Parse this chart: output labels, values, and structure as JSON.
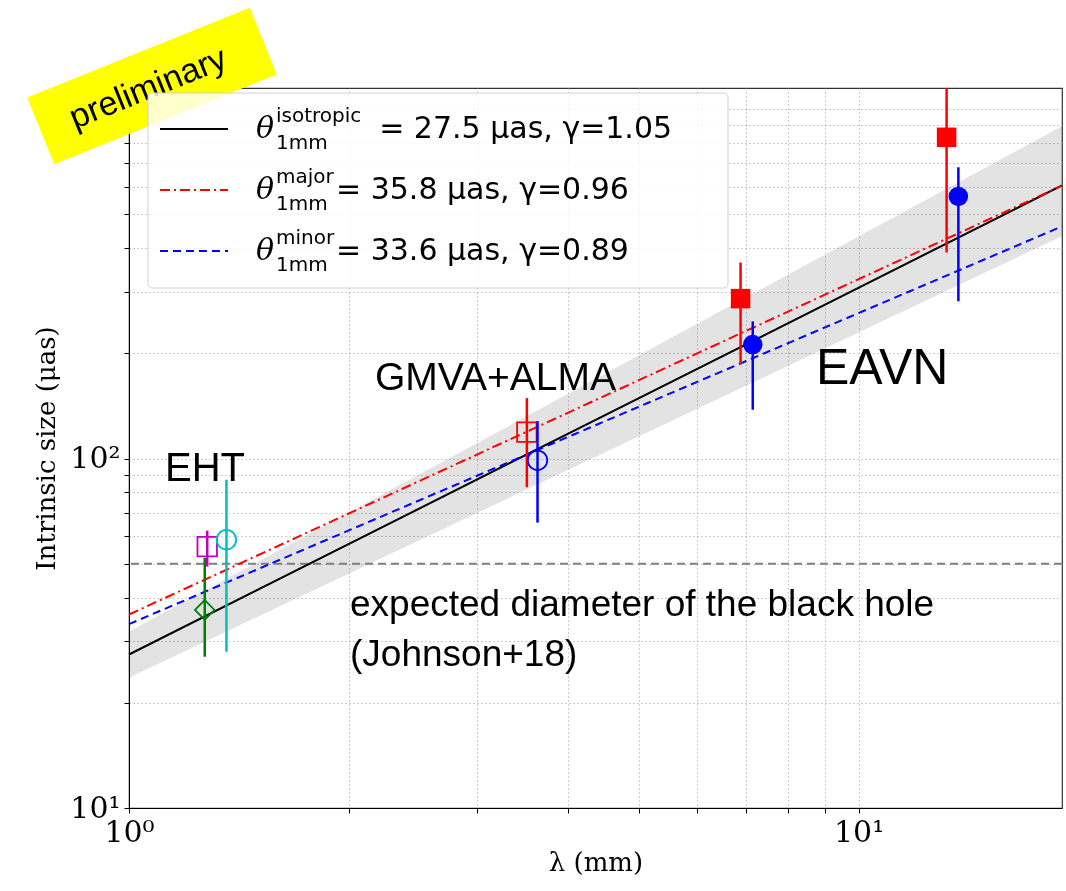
{
  "chart_data": {
    "type": "line",
    "xlabel": "λ (mm)",
    "ylabel": "Intrinsic size (μas)",
    "log": "xy",
    "grid": true,
    "legend": "top left",
    "xlim": [
      1,
      19
    ],
    "ylim": [
      10,
      1150
    ],
    "xticks": [
      {
        "value": 1,
        "label": "10⁰"
      },
      {
        "value": 2,
        "label": null
      },
      {
        "value": 3,
        "label": null
      },
      {
        "value": 4,
        "label": null
      },
      {
        "value": 5,
        "label": null
      },
      {
        "value": 6,
        "label": null
      },
      {
        "value": 7,
        "label": null
      },
      {
        "value": 8,
        "label": null
      },
      {
        "value": 9,
        "label": null
      },
      {
        "value": 10,
        "label": "10¹"
      }
    ],
    "yticks": [
      {
        "value": 10,
        "label": "10¹"
      },
      {
        "value": 20,
        "label": null
      },
      {
        "value": 30,
        "label": null
      },
      {
        "value": 40,
        "label": null
      },
      {
        "value": 50,
        "label": null
      },
      {
        "value": 60,
        "label": null
      },
      {
        "value": 70,
        "label": null
      },
      {
        "value": 80,
        "label": null
      },
      {
        "value": 90,
        "label": null
      },
      {
        "value": 100,
        "label": "10²"
      },
      {
        "value": 200,
        "label": null
      },
      {
        "value": 300,
        "label": null
      },
      {
        "value": 400,
        "label": null
      },
      {
        "value": 500,
        "label": null
      },
      {
        "value": 600,
        "label": null
      },
      {
        "value": 700,
        "label": null
      },
      {
        "value": 800,
        "label": null
      },
      {
        "value": 900,
        "label": null
      },
      {
        "value": 1000,
        "label": null
      }
    ],
    "series": [
      {
        "name": "θ$^{isotropic}$$_{1mm}$ = 27.5 μas, γ=1.05",
        "color": "#000000",
        "line_style": "solid",
        "x": [
          1,
          19
        ],
        "values": [
          27.5,
          605
        ],
        "lower": [
          23.6,
          433
        ],
        "upper": [
          32,
          894
        ]
      },
      {
        "name": "θ$^{major}$$_{1mm}$ = 35.8 μas, γ=0.96",
        "color": "#ff0000",
        "line_style": "dashdot",
        "x": [
          1,
          19
        ],
        "values": [
          35.8,
          604
        ]
      },
      {
        "name": "θ$^{minor}$$_{1mm}$ = 33.6 μas, γ=0.89",
        "color": "#0000ff",
        "line_style": "dashed",
        "x": [
          1,
          19
        ],
        "values": [
          33.6,
          462
        ]
      },
      {
        "type": "scatter",
        "color": "#008000",
        "marker": "diamond",
        "x": [
          1.27
        ],
        "values": [
          36.9
        ],
        "errors": [
          [
            27.1,
            52
          ]
        ]
      },
      {
        "type": "scatter",
        "color": "#bf00bf",
        "marker": "square",
        "x": [
          1.28
        ],
        "values": [
          56
        ],
        "errors": [
          [
            49.1,
            62.2
          ]
        ]
      },
      {
        "type": "scatter",
        "color": "#00bfbf",
        "marker": "circle",
        "x": [
          1.36
        ],
        "values": [
          58.6
        ],
        "errors": [
          [
            28.0,
            87
          ]
        ]
      },
      {
        "type": "scatter",
        "color": "#ff0000",
        "marker": "square",
        "x": [
          3.51
        ],
        "values": [
          119
        ],
        "errors": [
          [
            82.8,
            149
          ]
        ]
      },
      {
        "type": "scatter",
        "color": "#0000ff",
        "marker": "circle",
        "x": [
          3.63
        ],
        "values": [
          98.9
        ],
        "errors": [
          [
            65.6,
            128
          ]
        ]
      },
      {
        "type": "scatter",
        "color": "#ff0000",
        "marker": "square",
        "x": [
          6.89,
          13.2
        ],
        "values": [
          287,
          831
        ],
        "errors": [
          [
            186,
            364
          ],
          [
            389,
            1150
          ]
        ]
      },
      {
        "type": "scatter",
        "color": "#0000ff",
        "marker": "circle",
        "x": [
          7.16,
          13.7
        ],
        "values": [
          212,
          563
        ],
        "errors": [
          [
            138,
            247
          ],
          [
            282,
            682
          ]
        ]
      }
    ],
    "ref_lines": [
      {
        "axis": "y",
        "value": 50,
        "label": "expected diameter of the black hole\n(Johnson+18)",
        "color": "#808080",
        "line_style": "dashed"
      }
    ],
    "annotations": [
      "EHT",
      "GMVA+ALMA",
      "EAVN",
      "preliminary"
    ]
  }
}
